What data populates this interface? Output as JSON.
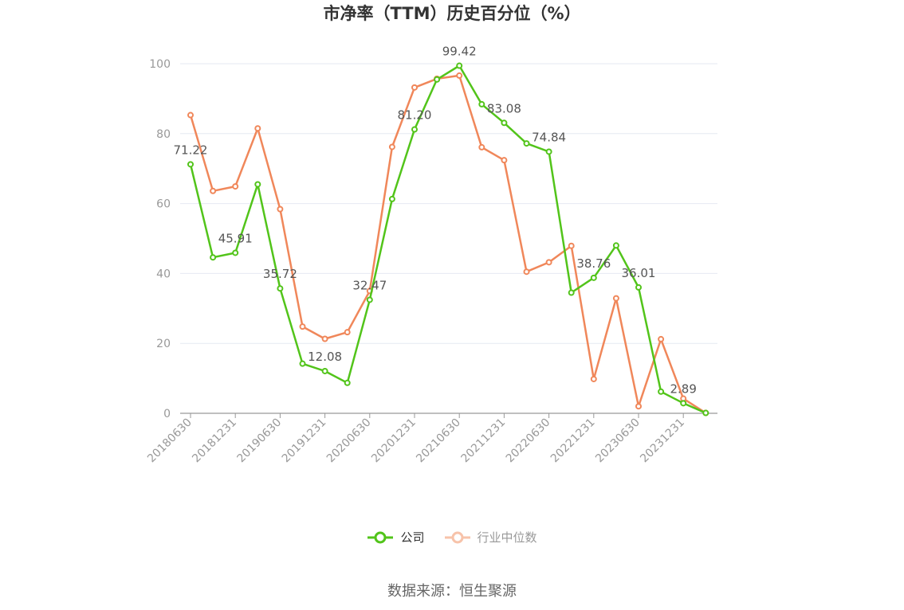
{
  "chart_data": {
    "type": "line",
    "title": "市净率（TTM）历史百分位（%）",
    "x": [
      "20180630",
      "20180930",
      "20181231",
      "20190331",
      "20190630",
      "20190930",
      "20191231",
      "20200331",
      "20200630",
      "20200930",
      "20201231",
      "20210331",
      "20210630",
      "20210930",
      "20211231",
      "20220331",
      "20220630",
      "20220930",
      "20221231",
      "20230331",
      "20230630",
      "20230930",
      "20231231",
      "20240331"
    ],
    "x_tick_labels": [
      "20180630",
      "20181231",
      "20190630",
      "20191231",
      "20200630",
      "20201231",
      "20210630",
      "20211231",
      "20220630",
      "20221231",
      "20230630",
      "20231231"
    ],
    "ylim": [
      0,
      100
    ],
    "y_ticks": [
      "0",
      "20",
      "40",
      "60",
      "80",
      "100"
    ],
    "grid": true,
    "legend_position": "bottom",
    "series": [
      {
        "name": "公司",
        "color": "#52c41a",
        "values": [
          71.22,
          44.6,
          45.91,
          65.5,
          35.72,
          14.2,
          12.08,
          8.7,
          32.47,
          61.3,
          81.2,
          95.5,
          99.42,
          88.4,
          83.08,
          77.2,
          74.84,
          34.5,
          38.76,
          48.0,
          36.01,
          6.2,
          2.89,
          0.1
        ],
        "labels": [
          {
            "index": 0,
            "text": "71.22"
          },
          {
            "index": 2,
            "text": "45.91"
          },
          {
            "index": 4,
            "text": "35.72"
          },
          {
            "index": 6,
            "text": "12.08"
          },
          {
            "index": 8,
            "text": "32.47"
          },
          {
            "index": 10,
            "text": "81.20"
          },
          {
            "index": 12,
            "text": "99.42"
          },
          {
            "index": 14,
            "text": "83.08"
          },
          {
            "index": 16,
            "text": "74.84"
          },
          {
            "index": 18,
            "text": "38.76"
          },
          {
            "index": 20,
            "text": "36.01"
          },
          {
            "index": 22,
            "text": "2.89"
          }
        ]
      },
      {
        "name": "行业中位数",
        "color": "#f0875a",
        "values": [
          85.3,
          63.6,
          64.9,
          81.5,
          58.4,
          24.8,
          21.3,
          23.2,
          35.0,
          76.2,
          93.2,
          95.7,
          96.6,
          76.1,
          72.4,
          40.5,
          43.2,
          47.9,
          9.8,
          32.9,
          2.0,
          21.2,
          4.2,
          0.1
        ]
      }
    ]
  },
  "source_text": "数据来源：恒生聚源"
}
